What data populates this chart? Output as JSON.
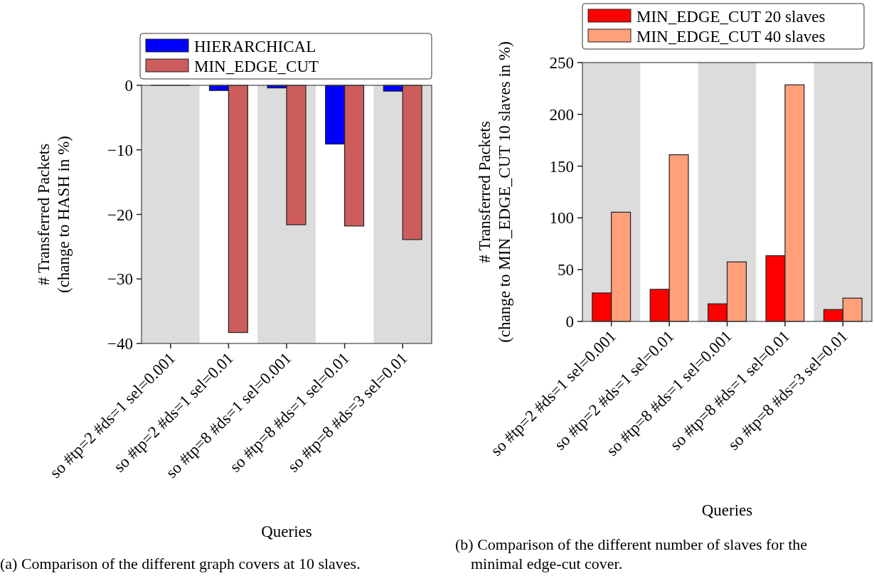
{
  "chart_data": [
    {
      "type": "bar",
      "categories": [
        "so #tp=2 #ds=1 sel=0.001",
        "so #tp=2 #ds=1 sel=0.01",
        "so #tp=8 #ds=1 sel=0.001",
        "so #tp=8 #ds=1 sel=0.01",
        "so #tp=8 #ds=3 sel=0.01"
      ],
      "xlabel": "Queries",
      "ylabel": "# Transferred Packets\n(change to HASH in %)",
      "series": [
        {
          "name": "HIERARCHICAL",
          "color": "#0000ff",
          "values": [
            0,
            -0.8,
            -0.4,
            -9.1,
            -0.9
          ]
        },
        {
          "name": "MIN_EDGE_CUT",
          "color": "#cd5c5c",
          "values": [
            0,
            -38.3,
            -21.6,
            -21.8,
            -23.9
          ]
        }
      ],
      "ylim": [
        -40,
        0
      ],
      "yticks": [
        {
          "value": 0,
          "label": "0"
        },
        {
          "value": -10,
          "label": "−10"
        },
        {
          "value": -20,
          "label": "−20"
        },
        {
          "value": -30,
          "label": "−30"
        },
        {
          "value": -40,
          "label": "−40"
        }
      ],
      "bands": [
        {
          "axis": "x",
          "from": "so #tp=2 #ds=1 sel=0.001",
          "to": "so #tp=2 #ds=1 sel=0.001",
          "color": "#dcdcdc"
        },
        {
          "axis": "x",
          "from": "so #tp=8 #ds=1 sel=0.001",
          "to": "so #tp=8 #ds=1 sel=0.001",
          "color": "#dcdcdc"
        },
        {
          "axis": "x",
          "from": "so #tp=8 #ds=3 sel=0.01",
          "to": "so #tp=8 #ds=3 sel=0.01",
          "color": "#dcdcdc"
        }
      ],
      "legend": "top",
      "annotations": [
        "(a) Comparison of the different graph covers at 10 slaves."
      ]
    },
    {
      "type": "bar",
      "categories": [
        "so #tp=2 #ds=1 sel=0.001",
        "so #tp=2 #ds=1 sel=0.01",
        "so #tp=8 #ds=1 sel=0.001",
        "so #tp=8 #ds=1 sel=0.01",
        "so #tp=8 #ds=3 sel=0.01"
      ],
      "xlabel": "Queries",
      "ylabel": "# Transferred Packets\n(change to MIN_EDGE_CUT 10 slaves in %)",
      "series": [
        {
          "name": "MIN_EDGE_CUT 20 slaves",
          "color": "#ff0000",
          "values": [
            27.5,
            31,
            17,
            63.5,
            11.5
          ]
        },
        {
          "name": "MIN_EDGE_CUT 40 slaves",
          "color": "#ffa07a",
          "values": [
            105.5,
            161,
            57.5,
            228.5,
            22.5
          ]
        }
      ],
      "ylim": [
        0,
        250
      ],
      "yticks": [
        0,
        50,
        100,
        150,
        200,
        250
      ],
      "bands": [
        {
          "axis": "x",
          "from": "so #tp=2 #ds=1 sel=0.001",
          "to": "so #tp=2 #ds=1 sel=0.001",
          "color": "#dcdcdc"
        },
        {
          "axis": "x",
          "from": "so #tp=8 #ds=1 sel=0.001",
          "to": "so #tp=8 #ds=1 sel=0.001",
          "color": "#dcdcdc"
        },
        {
          "axis": "x",
          "from": "so #tp=8 #ds=3 sel=0.01",
          "to": "so #tp=8 #ds=3 sel=0.01",
          "color": "#dcdcdc"
        }
      ],
      "legend": "top",
      "annotations": [
        "(b) Comparison of the different number of slaves for the\nminimal edge-cut cover."
      ]
    }
  ]
}
